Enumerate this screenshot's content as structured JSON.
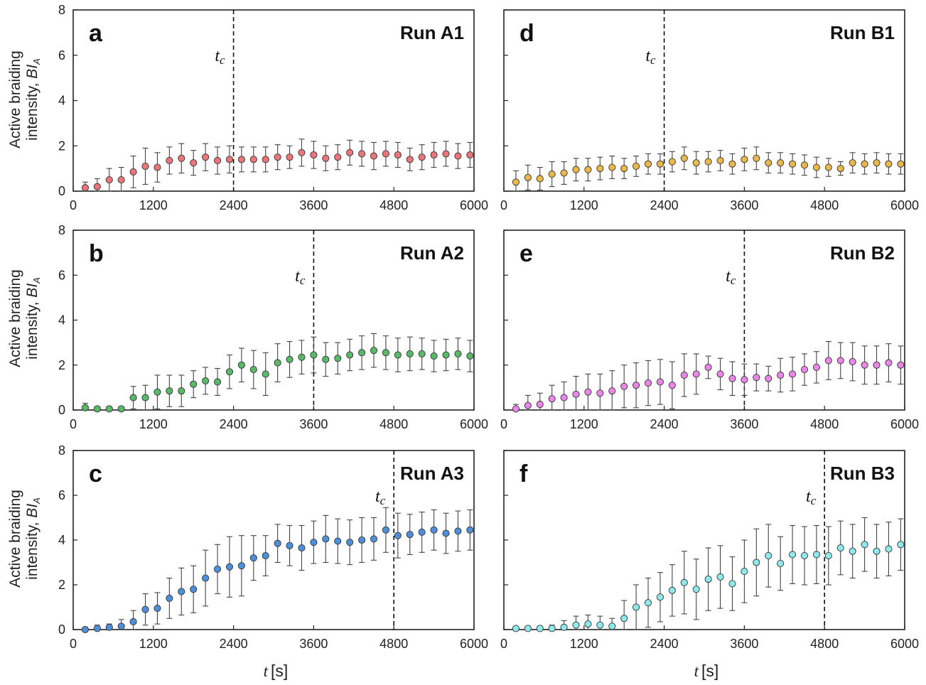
{
  "figure": {
    "y_label_line1": "Active braiding",
    "y_label_line2_prefix": "intensity, ",
    "y_label_symbol": "BI",
    "y_label_subscript": "A",
    "x_label_symbol": "t",
    "x_label_unit": "[s]",
    "tc_symbol": "t",
    "tc_subscript": "c"
  },
  "chart_data": [
    {
      "type": "scatter",
      "panel": "a",
      "title": "Run A1",
      "color": "#e8767a",
      "xlim": [
        0,
        6000
      ],
      "ylim": [
        0,
        8
      ],
      "xticks": [
        0,
        1200,
        2400,
        3600,
        4800,
        6000
      ],
      "yticks": [
        0,
        2,
        4,
        6,
        8
      ],
      "show_yticklabels": true,
      "tc": 2400,
      "x": [
        180,
        360,
        540,
        720,
        900,
        1080,
        1260,
        1440,
        1620,
        1800,
        1980,
        2160,
        2340,
        2520,
        2700,
        2880,
        3060,
        3240,
        3420,
        3600,
        3780,
        3960,
        4140,
        4320,
        4500,
        4680,
        4860,
        5040,
        5220,
        5400,
        5580,
        5760,
        5940
      ],
      "y": [
        0.15,
        0.2,
        0.5,
        0.5,
        0.85,
        1.1,
        1.05,
        1.35,
        1.45,
        1.25,
        1.5,
        1.35,
        1.4,
        1.4,
        1.4,
        1.4,
        1.5,
        1.5,
        1.7,
        1.6,
        1.45,
        1.5,
        1.7,
        1.65,
        1.55,
        1.65,
        1.6,
        1.4,
        1.5,
        1.6,
        1.65,
        1.55,
        1.6
      ],
      "err": [
        0.25,
        0.35,
        0.5,
        0.55,
        0.7,
        0.8,
        0.65,
        0.6,
        0.65,
        0.55,
        0.6,
        0.6,
        0.6,
        0.55,
        0.55,
        0.55,
        0.55,
        0.5,
        0.6,
        0.6,
        0.55,
        0.55,
        0.55,
        0.55,
        0.6,
        0.55,
        0.55,
        0.5,
        0.55,
        0.55,
        0.55,
        0.55,
        0.55
      ]
    },
    {
      "type": "scatter",
      "panel": "d",
      "title": "Run B1",
      "color": "#e8b84a",
      "xlim": [
        0,
        6000
      ],
      "ylim": [
        0,
        8
      ],
      "xticks": [
        0,
        1200,
        2400,
        3600,
        4800,
        6000
      ],
      "yticks": [
        0,
        2,
        4,
        6,
        8
      ],
      "show_yticklabels": false,
      "tc": 2400,
      "x": [
        180,
        360,
        540,
        720,
        900,
        1080,
        1260,
        1440,
        1620,
        1800,
        1980,
        2160,
        2340,
        2520,
        2700,
        2880,
        3060,
        3240,
        3420,
        3600,
        3780,
        3960,
        4140,
        4320,
        4500,
        4680,
        4860,
        5040,
        5220,
        5400,
        5580,
        5760,
        5940
      ],
      "y": [
        0.4,
        0.6,
        0.55,
        0.75,
        0.8,
        0.95,
        0.95,
        1.0,
        1.05,
        1.0,
        1.1,
        1.2,
        1.2,
        1.3,
        1.45,
        1.25,
        1.3,
        1.35,
        1.2,
        1.4,
        1.45,
        1.25,
        1.25,
        1.2,
        1.15,
        1.05,
        1.05,
        1.0,
        1.25,
        1.2,
        1.25,
        1.2,
        1.2
      ],
      "err": [
        0.5,
        0.55,
        0.5,
        0.55,
        0.5,
        0.5,
        0.5,
        0.5,
        0.5,
        0.45,
        0.45,
        0.45,
        0.45,
        0.45,
        0.5,
        0.5,
        0.45,
        0.45,
        0.45,
        0.5,
        0.5,
        0.45,
        0.45,
        0.45,
        0.45,
        0.45,
        0.4,
        0.3,
        0.45,
        0.45,
        0.45,
        0.45,
        0.45
      ]
    },
    {
      "type": "scatter",
      "panel": "b",
      "title": "Run A2",
      "color": "#5bb86a",
      "xlim": [
        0,
        6000
      ],
      "ylim": [
        0,
        8
      ],
      "xticks": [
        0,
        1200,
        2400,
        3600,
        4800,
        6000
      ],
      "yticks": [
        0,
        2,
        4,
        6,
        8
      ],
      "show_yticklabels": true,
      "tc": 3600,
      "x": [
        180,
        360,
        540,
        720,
        900,
        1080,
        1260,
        1440,
        1620,
        1800,
        1980,
        2160,
        2340,
        2520,
        2700,
        2880,
        3060,
        3240,
        3420,
        3600,
        3780,
        3960,
        4140,
        4320,
        4500,
        4680,
        4860,
        5040,
        5220,
        5400,
        5580,
        5760,
        5940
      ],
      "y": [
        0.1,
        0.05,
        0.05,
        0.05,
        0.55,
        0.55,
        0.8,
        0.85,
        0.85,
        1.15,
        1.3,
        1.25,
        1.7,
        2.0,
        1.8,
        1.6,
        2.1,
        2.25,
        2.35,
        2.45,
        2.25,
        2.3,
        2.45,
        2.55,
        2.65,
        2.55,
        2.45,
        2.5,
        2.5,
        2.4,
        2.45,
        2.5,
        2.4
      ],
      "err": [
        0.2,
        0.1,
        0.1,
        0.1,
        0.5,
        0.55,
        0.75,
        0.7,
        0.7,
        0.6,
        0.6,
        0.6,
        0.75,
        0.75,
        0.85,
        0.95,
        0.85,
        0.8,
        0.75,
        0.8,
        0.75,
        0.7,
        0.7,
        0.75,
        0.75,
        0.75,
        0.75,
        0.75,
        0.7,
        0.7,
        0.7,
        0.7,
        0.7
      ]
    },
    {
      "type": "scatter",
      "panel": "e",
      "title": "Run B2",
      "color": "#ea86e8",
      "xlim": [
        0,
        6000
      ],
      "ylim": [
        0,
        8
      ],
      "xticks": [
        0,
        1200,
        2400,
        3600,
        4800,
        6000
      ],
      "yticks": [
        0,
        2,
        4,
        6,
        8
      ],
      "show_yticklabels": false,
      "tc": 3600,
      "x": [
        180,
        360,
        540,
        720,
        900,
        1080,
        1260,
        1440,
        1620,
        1800,
        1980,
        2160,
        2340,
        2520,
        2700,
        2880,
        3060,
        3240,
        3420,
        3600,
        3780,
        3960,
        4140,
        4320,
        4500,
        4680,
        4860,
        5040,
        5220,
        5400,
        5580,
        5760,
        5940
      ],
      "y": [
        0.05,
        0.2,
        0.25,
        0.5,
        0.55,
        0.7,
        0.8,
        0.75,
        0.85,
        1.05,
        1.1,
        1.2,
        1.25,
        1.1,
        1.55,
        1.6,
        1.9,
        1.6,
        1.4,
        1.35,
        1.45,
        1.4,
        1.55,
        1.6,
        1.8,
        1.9,
        2.2,
        2.2,
        2.15,
        2.0,
        2.0,
        2.1,
        2.0
      ],
      "err": [
        0.2,
        0.45,
        0.5,
        0.6,
        0.7,
        0.8,
        0.8,
        0.85,
        0.9,
        0.95,
        1.0,
        1.0,
        1.0,
        1.05,
        0.95,
        0.9,
        0.5,
        0.7,
        0.75,
        0.7,
        0.6,
        0.55,
        0.75,
        0.75,
        0.7,
        0.7,
        0.85,
        0.8,
        0.85,
        0.85,
        0.85,
        0.85,
        0.85
      ]
    },
    {
      "type": "scatter",
      "panel": "c",
      "title": "Run A3",
      "color": "#4f8fd8",
      "xlim": [
        0,
        6000
      ],
      "ylim": [
        0,
        8
      ],
      "xticks": [
        0,
        1200,
        2400,
        3600,
        4800,
        6000
      ],
      "yticks": [
        0,
        2,
        4,
        6,
        8
      ],
      "show_yticklabels": true,
      "tc": 4800,
      "x": [
        180,
        360,
        540,
        720,
        900,
        1080,
        1260,
        1440,
        1620,
        1800,
        1980,
        2160,
        2340,
        2520,
        2700,
        2880,
        3060,
        3240,
        3420,
        3600,
        3780,
        3960,
        4140,
        4320,
        4500,
        4680,
        4860,
        5040,
        5220,
        5400,
        5580,
        5760,
        5940
      ],
      "y": [
        0.0,
        0.05,
        0.1,
        0.15,
        0.35,
        0.9,
        0.95,
        1.4,
        1.7,
        1.8,
        2.3,
        2.7,
        2.8,
        2.85,
        3.2,
        3.3,
        3.85,
        3.75,
        3.65,
        3.9,
        4.05,
        3.95,
        3.9,
        4.0,
        4.05,
        4.45,
        4.2,
        4.25,
        4.35,
        4.45,
        4.3,
        4.4,
        4.45
      ],
      "err": [
        0.1,
        0.15,
        0.15,
        0.3,
        0.5,
        0.7,
        0.7,
        0.9,
        1.05,
        1.05,
        1.25,
        1.1,
        1.35,
        1.35,
        1.0,
        0.9,
        0.85,
        0.9,
        1.0,
        0.95,
        1.05,
        1.0,
        1.0,
        1.0,
        0.95,
        1.0,
        1.0,
        0.9,
        0.9,
        0.9,
        0.9,
        0.9,
        0.9
      ]
    },
    {
      "type": "scatter",
      "panel": "f",
      "title": "Run B3",
      "color": "#8ee9ea",
      "xlim": [
        0,
        6000
      ],
      "ylim": [
        0,
        8
      ],
      "xticks": [
        0,
        1200,
        2400,
        3600,
        4800,
        6000
      ],
      "yticks": [
        0,
        2,
        4,
        6,
        8
      ],
      "show_yticklabels": false,
      "tc": 4800,
      "x": [
        180,
        360,
        540,
        720,
        900,
        1080,
        1260,
        1440,
        1620,
        1800,
        1980,
        2160,
        2340,
        2520,
        2700,
        2880,
        3060,
        3240,
        3420,
        3600,
        3780,
        3960,
        4140,
        4320,
        4500,
        4680,
        4860,
        5040,
        5220,
        5400,
        5580,
        5760,
        5940
      ],
      "y": [
        0.05,
        0.05,
        0.05,
        0.05,
        0.1,
        0.2,
        0.25,
        0.2,
        0.15,
        0.5,
        1.0,
        1.2,
        1.45,
        1.75,
        2.1,
        1.8,
        2.25,
        2.35,
        2.05,
        2.6,
        3.0,
        3.3,
        2.95,
        3.35,
        3.3,
        3.35,
        3.3,
        3.65,
        3.5,
        3.8,
        3.5,
        3.6,
        3.8
      ],
      "err": [
        0.05,
        0.1,
        0.1,
        0.15,
        0.3,
        0.4,
        0.4,
        0.4,
        0.35,
        0.8,
        1.0,
        1.1,
        1.1,
        1.15,
        1.4,
        1.35,
        1.4,
        1.4,
        1.2,
        1.4,
        1.5,
        1.4,
        1.2,
        1.3,
        1.3,
        1.3,
        1.3,
        1.2,
        1.2,
        1.2,
        1.2,
        1.2,
        1.15
      ]
    }
  ]
}
